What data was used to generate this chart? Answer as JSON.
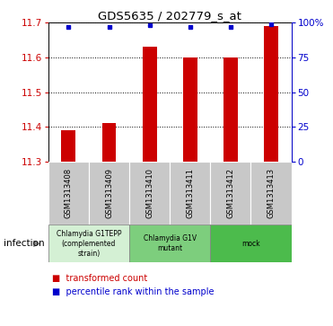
{
  "title": "GDS5635 / 202779_s_at",
  "samples": [
    "GSM1313408",
    "GSM1313409",
    "GSM1313410",
    "GSM1313411",
    "GSM1313412",
    "GSM1313413"
  ],
  "bar_values": [
    11.39,
    11.41,
    11.63,
    11.6,
    11.6,
    11.69
  ],
  "percentile_values": [
    97,
    97,
    98,
    97,
    97,
    99
  ],
  "ylim": [
    11.3,
    11.7
  ],
  "yticks": [
    11.3,
    11.4,
    11.5,
    11.6,
    11.7
  ],
  "right_yticks": [
    0,
    25,
    50,
    75,
    100
  ],
  "right_ytick_labels": [
    "0",
    "25",
    "50",
    "75",
    "100%"
  ],
  "bar_color": "#cc0000",
  "dot_color": "#0000cc",
  "groups": [
    {
      "label": "Chlamydia G1TEPP\n(complemented\nstrain)",
      "start": 0,
      "end": 2,
      "color": "#d4f0d4"
    },
    {
      "label": "Chlamydia G1V\nmutant",
      "start": 2,
      "end": 4,
      "color": "#7dce7d"
    },
    {
      "label": "mock",
      "start": 4,
      "end": 6,
      "color": "#4cbb4c"
    }
  ],
  "infection_label": "infection",
  "legend_bar_label": "transformed count",
  "legend_dot_label": "percentile rank within the sample",
  "bar_width": 0.35,
  "background_color": "#ffffff",
  "label_bg_color": "#c8c8c8"
}
